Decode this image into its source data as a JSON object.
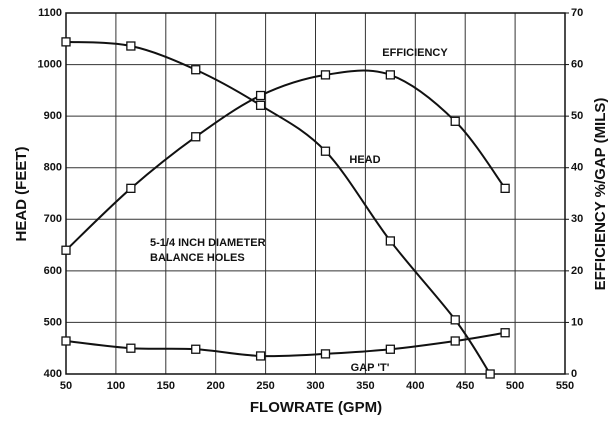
{
  "chart_data": {
    "type": "line",
    "x_label": "FLOWRATE (GPM)",
    "y_label": "HEAD (FEET)",
    "y2_label": "EFFICIENCY %/GAP (MILS)",
    "xlim": [
      50,
      550
    ],
    "xticks": [
      50,
      100,
      150,
      200,
      250,
      300,
      350,
      400,
      450,
      500,
      550
    ],
    "ylim": [
      400,
      1100
    ],
    "yticks": [
      400,
      500,
      600,
      700,
      800,
      900,
      1000,
      1100
    ],
    "y2lim": [
      0,
      70
    ],
    "y2ticks": [
      0,
      10,
      20,
      30,
      40,
      50,
      60,
      70
    ],
    "grid": true,
    "series": [
      {
        "name": "HEAD",
        "color": "#111111",
        "x": [
          50,
          115,
          180,
          245,
          310,
          375,
          440,
          475
        ],
        "values": [
          1044,
          1036,
          990,
          921,
          832,
          658,
          505,
          400
        ]
      },
      {
        "name": "EFFICIENCY",
        "color": "#111111",
        "axis": "y2",
        "x": [
          50,
          115,
          180,
          245,
          310,
          375,
          440,
          490
        ],
        "values": [
          24,
          36,
          46,
          54,
          58,
          58,
          49,
          36
        ]
      },
      {
        "name": "GAP 'T'",
        "color": "#111111",
        "axis": "y2",
        "x": [
          50,
          115,
          180,
          245,
          310,
          375,
          440,
          490
        ],
        "values": [
          6.4,
          5,
          4.8,
          3.5,
          3.9,
          4.8,
          6.4,
          8
        ]
      }
    ],
    "annotation": [
      "5-1/4 INCH DIAMETER",
      "BALANCE HOLES"
    ]
  }
}
